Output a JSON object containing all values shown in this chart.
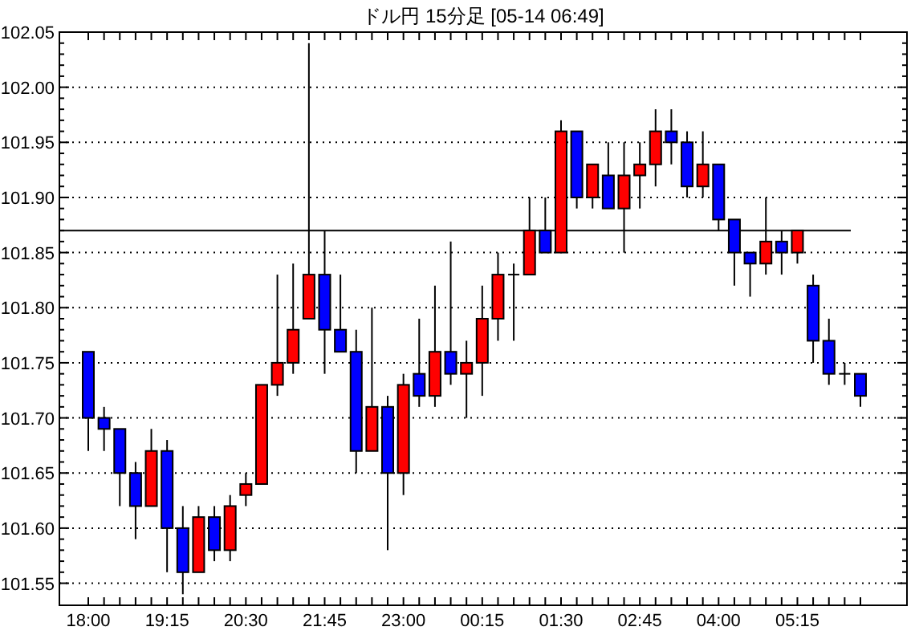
{
  "chart_data": {
    "type": "candlestick",
    "title": "ドル円 15分足 [05-14 06:49]",
    "categories": [
      "18:00",
      null,
      null,
      null,
      null,
      "19:15",
      null,
      null,
      null,
      null,
      "20:30",
      null,
      null,
      null,
      null,
      "21:45",
      null,
      null,
      null,
      null,
      "23:00",
      null,
      null,
      null,
      null,
      "00:15",
      null,
      null,
      null,
      null,
      "01:30",
      null,
      null,
      null,
      null,
      "02:45",
      null,
      null,
      null,
      null,
      "04:00",
      null,
      null,
      null,
      null,
      "05:15",
      null,
      null,
      null,
      null
    ],
    "ohlc": [
      [
        101.76,
        101.76,
        101.67,
        101.7
      ],
      [
        101.7,
        101.71,
        101.67,
        101.69
      ],
      [
        101.69,
        101.69,
        101.62,
        101.65
      ],
      [
        101.65,
        101.66,
        101.59,
        101.62
      ],
      [
        101.62,
        101.69,
        101.62,
        101.67
      ],
      [
        101.67,
        101.68,
        101.56,
        101.6
      ],
      [
        101.6,
        101.62,
        101.54,
        101.56
      ],
      [
        101.56,
        101.62,
        101.56,
        101.61
      ],
      [
        101.61,
        101.62,
        101.57,
        101.58
      ],
      [
        101.58,
        101.63,
        101.57,
        101.62
      ],
      [
        101.63,
        101.65,
        101.62,
        101.64
      ],
      [
        101.64,
        101.73,
        101.64,
        101.73
      ],
      [
        101.73,
        101.83,
        101.72,
        101.75
      ],
      [
        101.75,
        101.84,
        101.74,
        101.78
      ],
      [
        101.79,
        102.04,
        101.79,
        101.83
      ],
      [
        101.83,
        101.87,
        101.74,
        101.78
      ],
      [
        101.78,
        101.83,
        101.76,
        101.76
      ],
      [
        101.76,
        101.78,
        101.65,
        101.67
      ],
      [
        101.67,
        101.8,
        101.67,
        101.71
      ],
      [
        101.71,
        101.72,
        101.58,
        101.65
      ],
      [
        101.65,
        101.74,
        101.63,
        101.73
      ],
      [
        101.74,
        101.79,
        101.71,
        101.72
      ],
      [
        101.72,
        101.82,
        101.71,
        101.76
      ],
      [
        101.76,
        101.86,
        101.73,
        101.74
      ],
      [
        101.74,
        101.77,
        101.7,
        101.75
      ],
      [
        101.75,
        101.82,
        101.72,
        101.79
      ],
      [
        101.79,
        101.85,
        101.77,
        101.83
      ],
      [
        101.83,
        101.84,
        101.77,
        101.83
      ],
      [
        101.83,
        101.9,
        101.83,
        101.87
      ],
      [
        101.87,
        101.9,
        101.85,
        101.85
      ],
      [
        101.85,
        101.97,
        101.85,
        101.96
      ],
      [
        101.96,
        101.96,
        101.89,
        101.9
      ],
      [
        101.9,
        101.93,
        101.89,
        101.93
      ],
      [
        101.92,
        101.95,
        101.89,
        101.89
      ],
      [
        101.89,
        101.95,
        101.85,
        101.92
      ],
      [
        101.92,
        101.95,
        101.89,
        101.93
      ],
      [
        101.93,
        101.98,
        101.91,
        101.96
      ],
      [
        101.96,
        101.98,
        101.93,
        101.95
      ],
      [
        101.95,
        101.96,
        101.9,
        101.91
      ],
      [
        101.91,
        101.96,
        101.9,
        101.93
      ],
      [
        101.93,
        101.93,
        101.87,
        101.88
      ],
      [
        101.88,
        101.88,
        101.82,
        101.85
      ],
      [
        101.85,
        101.85,
        101.81,
        101.84
      ],
      [
        101.84,
        101.9,
        101.83,
        101.86
      ],
      [
        101.86,
        101.87,
        101.83,
        101.85
      ],
      [
        101.85,
        101.87,
        101.84,
        101.87
      ],
      [
        101.82,
        101.83,
        101.75,
        101.77
      ],
      [
        101.77,
        101.79,
        101.73,
        101.74
      ],
      [
        101.74,
        101.75,
        101.73,
        101.74
      ],
      [
        101.74,
        101.74,
        101.71,
        101.72
      ]
    ],
    "colors": [
      "#0000ff",
      "#0000ff",
      "#0000ff",
      "#0000ff",
      "#ff0000",
      "#0000ff",
      "#0000ff",
      "#ff0000",
      "#0000ff",
      "#ff0000",
      "#ff0000",
      "#ff0000",
      "#ff0000",
      "#ff0000",
      "#ff0000",
      "#0000ff",
      "#0000ff",
      "#0000ff",
      "#ff0000",
      "#0000ff",
      "#ff0000",
      "#0000ff",
      "#ff0000",
      "#0000ff",
      "#ff0000",
      "#ff0000",
      "#ff0000",
      "#000000",
      "#ff0000",
      "#0000ff",
      "#ff0000",
      "#0000ff",
      "#ff0000",
      "#0000ff",
      "#ff0000",
      "#ff0000",
      "#ff0000",
      "#0000ff",
      "#0000ff",
      "#ff0000",
      "#0000ff",
      "#0000ff",
      "#0000ff",
      "#ff0000",
      "#0000ff",
      "#ff0000",
      "#0000ff",
      "#0000ff",
      "#000000",
      "#0000ff"
    ],
    "ylim": [
      101.53,
      102.05
    ],
    "yticks": [
      {
        "value": 101.55,
        "label": "101.55"
      },
      {
        "value": 101.6,
        "label": "101.60"
      },
      {
        "value": 101.65,
        "label": "101.65"
      },
      {
        "value": 101.7,
        "label": "101.70"
      },
      {
        "value": 101.75,
        "label": "101.75"
      },
      {
        "value": 101.8,
        "label": "101.80"
      },
      {
        "value": 101.85,
        "label": "101.85"
      },
      {
        "value": 101.9,
        "label": "101.90"
      },
      {
        "value": 101.95,
        "label": "101.95"
      },
      {
        "value": 102.0,
        "label": "102.00"
      },
      {
        "value": 102.05,
        "label": "102.05"
      }
    ],
    "grid": "y",
    "ref_lines": [
      {
        "axis": "y",
        "value": 101.87,
        "color": "#000000"
      }
    ]
  }
}
